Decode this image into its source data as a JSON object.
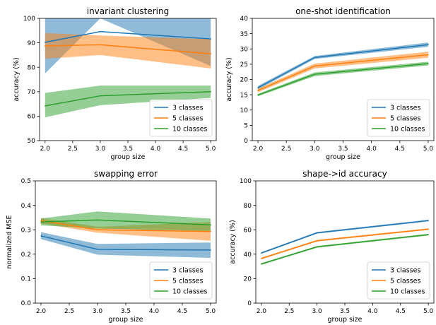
{
  "colors": {
    "s0": "#1f77b4",
    "s1": "#ff7f0e",
    "s2": "#2ca02c"
  },
  "chart_data": [
    {
      "type": "line",
      "title": "invariant clustering",
      "xlabel": "group size",
      "ylabel": "accuracy (%)",
      "x": [
        2.0,
        3.0,
        5.0
      ],
      "xlim": [
        1.9,
        5.1
      ],
      "ylim": [
        50,
        100
      ],
      "xticks": [
        2.0,
        2.5,
        3.0,
        3.5,
        4.0,
        4.5,
        5.0
      ],
      "xtick_labels": [
        "2.0",
        "2.5",
        "3.0",
        "3.5",
        "4.0",
        "4.5",
        "5.0"
      ],
      "yticks": [
        50,
        60,
        70,
        80,
        90,
        100
      ],
      "ytick_labels": [
        "50",
        "60",
        "70",
        "80",
        "90",
        "100"
      ],
      "legend_position": "lower-right",
      "series": [
        {
          "name": "3 classes",
          "values": [
            90.2,
            94.6,
            91.6
          ],
          "lower": [
            77.5,
            100,
            80.5
          ],
          "upper": [
            100,
            100,
            100
          ]
        },
        {
          "name": "5 classes",
          "values": [
            88.7,
            89.2,
            85.5
          ],
          "lower": [
            83.5,
            85.0,
            79.5
          ],
          "upper": [
            94.0,
            93.0,
            91.5
          ]
        },
        {
          "name": "10 classes",
          "values": [
            64.2,
            68.3,
            70.0
          ],
          "lower": [
            59.5,
            64.5,
            67.5
          ],
          "upper": [
            69.5,
            72.5,
            72.5
          ]
        }
      ]
    },
    {
      "type": "line",
      "title": "one-shot identification",
      "xlabel": "group size",
      "ylabel": "accuracy (%)",
      "x": [
        2.0,
        3.0,
        5.0
      ],
      "xlim": [
        1.9,
        5.1
      ],
      "ylim": [
        0,
        40
      ],
      "xticks": [
        2.0,
        2.5,
        3.0,
        3.5,
        4.0,
        4.5,
        5.0
      ],
      "xtick_labels": [
        "2.0",
        "2.5",
        "3.0",
        "3.5",
        "4.0",
        "4.5",
        "5.0"
      ],
      "yticks": [
        0,
        5,
        10,
        15,
        20,
        25,
        30,
        35,
        40
      ],
      "ytick_labels": [
        "0",
        "5",
        "10",
        "15",
        "20",
        "25",
        "30",
        "35",
        "40"
      ],
      "legend_position": "lower-right",
      "series": [
        {
          "name": "3 classes",
          "values": [
            17.3,
            27.2,
            31.4
          ],
          "lower": [
            16.7,
            26.7,
            30.7
          ],
          "upper": [
            17.9,
            27.7,
            32.1
          ]
        },
        {
          "name": "5 classes",
          "values": [
            16.4,
            24.4,
            28.1
          ],
          "lower": [
            15.8,
            23.6,
            27.1
          ],
          "upper": [
            17.0,
            25.2,
            29.1
          ]
        },
        {
          "name": "10 classes",
          "values": [
            14.9,
            21.7,
            25.2
          ],
          "lower": [
            14.5,
            21.1,
            24.6
          ],
          "upper": [
            15.3,
            22.3,
            25.8
          ]
        }
      ]
    },
    {
      "type": "line",
      "title": "swapping error",
      "xlabel": "group size",
      "ylabel": "normalized MSE",
      "x": [
        2.0,
        3.0,
        5.0
      ],
      "xlim": [
        1.9,
        5.1
      ],
      "ylim": [
        0,
        0.5
      ],
      "xticks": [
        2.0,
        2.5,
        3.0,
        3.5,
        4.0,
        4.5,
        5.0
      ],
      "xtick_labels": [
        "2.0",
        "2.5",
        "3.0",
        "3.5",
        "4.0",
        "4.5",
        "5.0"
      ],
      "yticks": [
        0,
        0.1,
        0.2,
        0.3,
        0.4,
        0.5
      ],
      "ytick_labels": [
        "0.0",
        "0.1",
        "0.2",
        "0.3",
        "0.4",
        "0.5"
      ],
      "legend_position": "lower-right",
      "series": [
        {
          "name": "3 classes",
          "values": [
            0.275,
            0.22,
            0.217
          ],
          "lower": [
            0.262,
            0.198,
            0.185
          ],
          "upper": [
            0.29,
            0.242,
            0.248
          ]
        },
        {
          "name": "5 classes",
          "values": [
            0.337,
            0.3,
            0.293
          ],
          "lower": [
            0.326,
            0.288,
            0.255
          ],
          "upper": [
            0.348,
            0.312,
            0.332
          ]
        },
        {
          "name": "10 classes",
          "values": [
            0.332,
            0.34,
            0.32
          ],
          "lower": [
            0.318,
            0.305,
            0.295
          ],
          "upper": [
            0.346,
            0.375,
            0.346
          ]
        }
      ]
    },
    {
      "type": "line",
      "title": "shape->id accuracy",
      "xlabel": "group size",
      "ylabel": "accuracy (%)",
      "x": [
        2.0,
        3.0,
        5.0
      ],
      "xlim": [
        1.9,
        5.1
      ],
      "ylim": [
        0,
        100
      ],
      "xticks": [
        2.0,
        2.5,
        3.0,
        3.5,
        4.0,
        4.5,
        5.0
      ],
      "xtick_labels": [
        "2.0",
        "2.5",
        "3.0",
        "3.5",
        "4.0",
        "4.5",
        "5.0"
      ],
      "yticks": [
        0,
        20,
        40,
        60,
        80,
        100
      ],
      "ytick_labels": [
        "0",
        "20",
        "40",
        "60",
        "80",
        "100"
      ],
      "legend_position": "lower-right",
      "series": [
        {
          "name": "3 classes",
          "values": [
            41.0,
            57.5,
            67.5
          ],
          "lower": [
            40.3,
            56.8,
            66.8
          ],
          "upper": [
            41.7,
            58.2,
            68.2
          ]
        },
        {
          "name": "5 classes",
          "values": [
            36.5,
            51.0,
            60.5
          ],
          "lower": [
            35.8,
            50.3,
            59.8
          ],
          "upper": [
            37.2,
            51.7,
            61.2
          ]
        },
        {
          "name": "10 classes",
          "values": [
            32.0,
            46.0,
            56.0
          ],
          "lower": [
            31.3,
            45.3,
            55.3
          ],
          "upper": [
            32.7,
            46.7,
            56.7
          ]
        }
      ]
    }
  ]
}
